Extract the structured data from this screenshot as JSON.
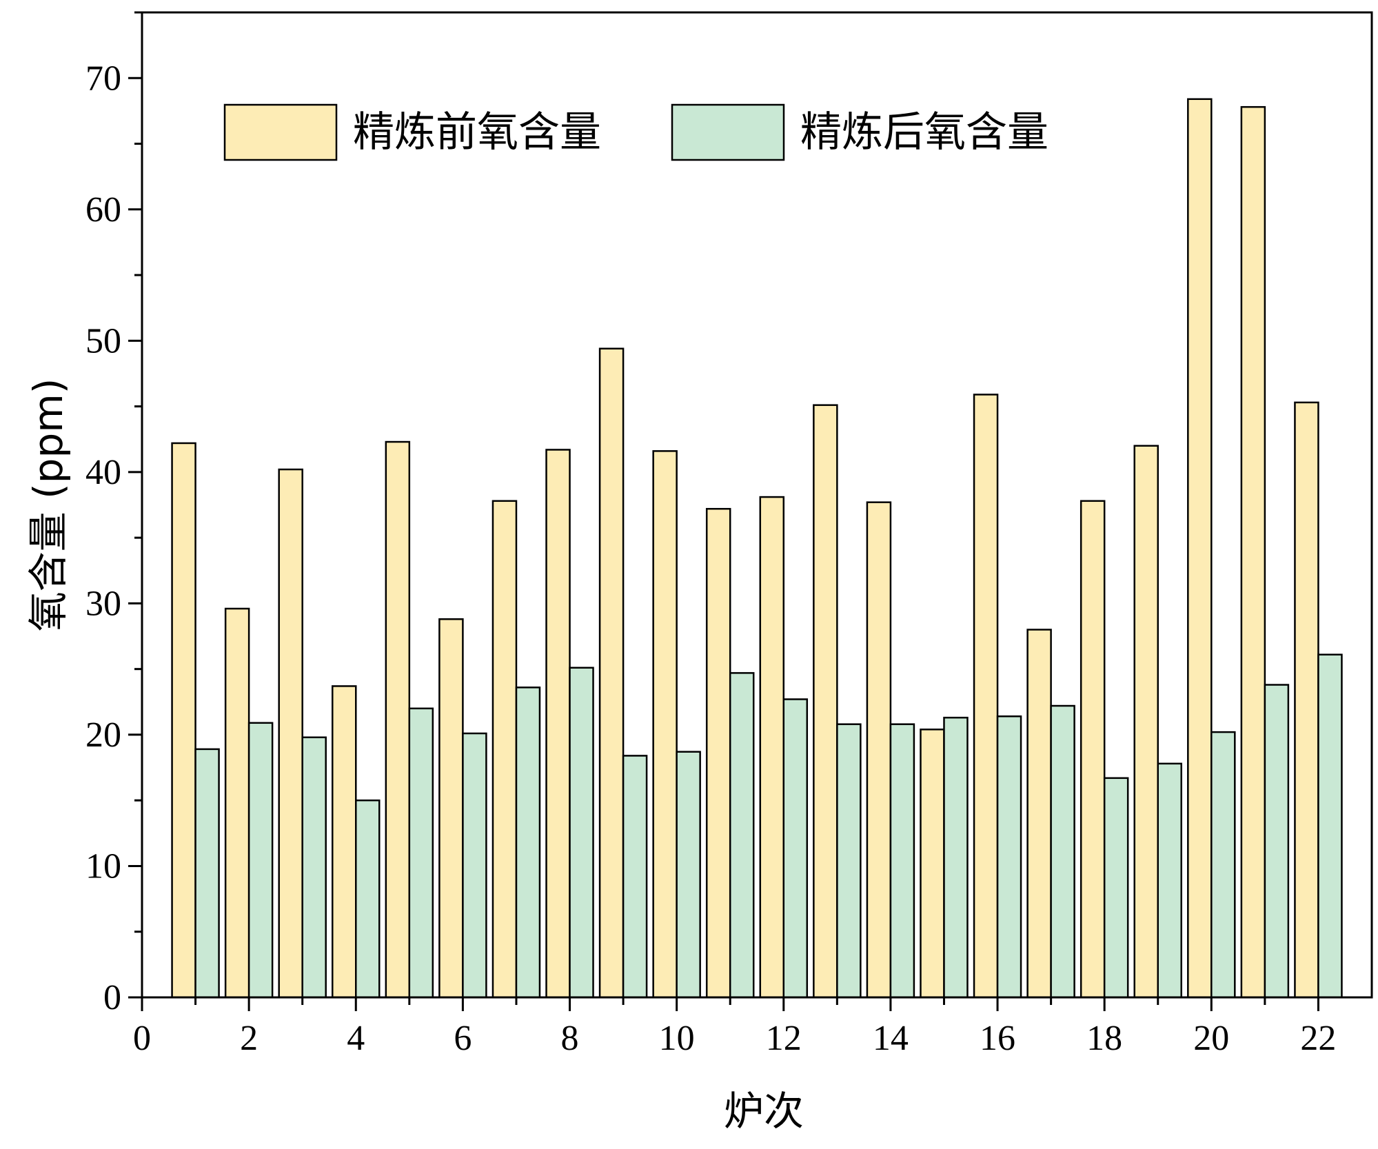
{
  "chart_data": {
    "type": "bar",
    "title": "",
    "xlabel": "炉次",
    "ylabel": "氧含量 (ppm)",
    "xlim": [
      0,
      23
    ],
    "ylim": [
      0,
      75
    ],
    "x_ticks": [
      0,
      2,
      4,
      6,
      8,
      10,
      12,
      14,
      16,
      18,
      20,
      22
    ],
    "y_ticks": [
      0,
      10,
      20,
      30,
      40,
      50,
      60,
      70
    ],
    "grid": false,
    "legend_position": "top",
    "categories": [
      1,
      2,
      3,
      4,
      5,
      6,
      7,
      8,
      9,
      10,
      11,
      12,
      13,
      14,
      15,
      16,
      17,
      18,
      19,
      20,
      21,
      22
    ],
    "series": [
      {
        "name": "精炼前氧含量",
        "color": "#fdecb5",
        "values": [
          42.2,
          29.6,
          40.2,
          23.7,
          42.3,
          28.8,
          37.8,
          41.7,
          49.4,
          41.6,
          37.2,
          38.1,
          45.1,
          37.7,
          20.4,
          45.9,
          28.0,
          37.8,
          42.0,
          68.4,
          67.8,
          45.3
        ]
      },
      {
        "name": "精炼后氧含量",
        "color": "#c9e8d4",
        "values": [
          18.9,
          20.9,
          19.8,
          15.0,
          22.0,
          20.1,
          23.6,
          25.1,
          18.4,
          18.7,
          24.7,
          22.7,
          20.8,
          20.8,
          21.3,
          21.4,
          22.2,
          16.7,
          17.8,
          20.2,
          23.8,
          26.1
        ]
      }
    ]
  }
}
